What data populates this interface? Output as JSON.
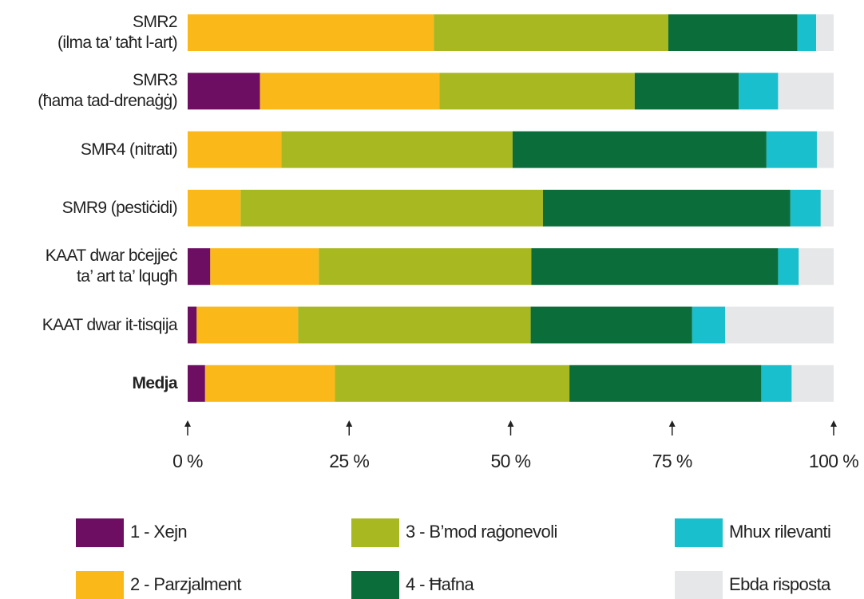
{
  "chart_data": {
    "type": "stacked-barh",
    "categories": [
      "SMR2\n(ilma ta’ taħt l-art)",
      "SMR3\n(ħama tad-drenaġġ)",
      "SMR4 (nitrati)",
      "SMR9 (pestiċidi)",
      "KAAT dwar bċejjeċ\nta’ art ta’ lqugħ",
      "KAAT dwar it-tisqija",
      "Medja"
    ],
    "series": [
      {
        "name": "1 - Xejn",
        "color": "#6e0e62",
        "values": [
          0,
          11.2,
          0,
          0,
          3.5,
          1.4,
          2.7
        ]
      },
      {
        "name": "2 - Parzjalment",
        "color": "#fbb919",
        "values": [
          38.1,
          27.8,
          14.5,
          8.2,
          16.8,
          15.7,
          20.1
        ]
      },
      {
        "name": "3 - B’mod raġonevoli",
        "color": "#a8b820",
        "values": [
          36.3,
          30.2,
          35.8,
          46.8,
          32.9,
          36.0,
          36.3
        ]
      },
      {
        "name": "4 - Ħafna",
        "color": "#0b6e3a",
        "values": [
          20.0,
          16.1,
          39.3,
          38.3,
          38.2,
          25.0,
          29.7
        ]
      },
      {
        "name": "Mhux rilevanti",
        "color": "#19bfcc",
        "values": [
          2.9,
          6.1,
          7.8,
          4.7,
          3.2,
          5.1,
          4.7
        ]
      },
      {
        "name": "Ebda risposta",
        "color": "#e6e7e8",
        "values": [
          2.7,
          8.6,
          2.6,
          2.0,
          5.4,
          16.8,
          6.5
        ]
      }
    ],
    "xlim": [
      0,
      100
    ],
    "xticks": [
      {
        "value": 0,
        "label": "0 %"
      },
      {
        "value": 25,
        "label": "25 %"
      },
      {
        "value": 50,
        "label": "50 %"
      },
      {
        "value": 75,
        "label": "75 %"
      },
      {
        "value": 100,
        "label": "100 %"
      }
    ]
  }
}
